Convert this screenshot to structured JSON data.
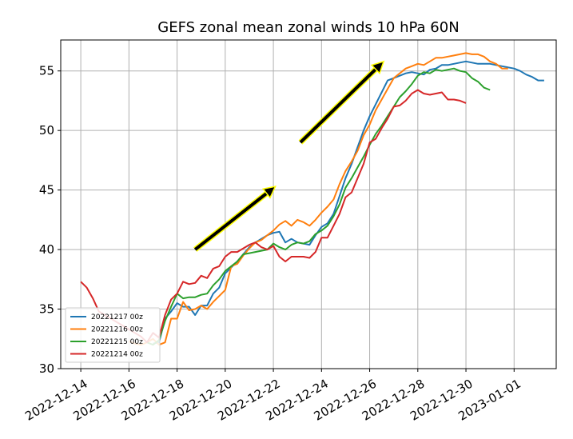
{
  "chart_data": {
    "type": "line",
    "title": "GEFS zonal mean zonal winds 10 hPa 60N",
    "xlabel": "",
    "ylabel": "",
    "xlim": [
      "2022-12-13T04:00",
      "2023-01-02T18:00"
    ],
    "ylim": [
      30,
      57.6
    ],
    "grid": true,
    "legend_position": "lower-left",
    "x_ticks": [
      "2022-12-14",
      "2022-12-16",
      "2022-12-18",
      "2022-12-20",
      "2022-12-22",
      "2022-12-24",
      "2022-12-26",
      "2022-12-28",
      "2022-12-30",
      "2023-01-01"
    ],
    "y_ticks": [
      30,
      35,
      40,
      45,
      50,
      55
    ],
    "series": [
      {
        "name": "20221217 00z",
        "color": "#1f77b4",
        "x": [
          "2022-12-17T00:00",
          "2022-12-17T06:00",
          "2022-12-17T12:00",
          "2022-12-17T18:00",
          "2022-12-18T00:00",
          "2022-12-18T06:00",
          "2022-12-18T12:00",
          "2022-12-18T18:00",
          "2022-12-19T00:00",
          "2022-12-19T06:00",
          "2022-12-19T12:00",
          "2022-12-19T18:00",
          "2022-12-20T00:00",
          "2022-12-20T06:00",
          "2022-12-20T12:00",
          "2022-12-20T18:00",
          "2022-12-21T00:00",
          "2022-12-21T06:00",
          "2022-12-21T12:00",
          "2022-12-21T18:00",
          "2022-12-22T00:00",
          "2022-12-22T06:00",
          "2022-12-22T12:00",
          "2022-12-22T18:00",
          "2022-12-23T00:00",
          "2022-12-23T06:00",
          "2022-12-23T12:00",
          "2022-12-23T18:00",
          "2022-12-24T00:00",
          "2022-12-24T06:00",
          "2022-12-24T12:00",
          "2022-12-24T18:00",
          "2022-12-25T00:00",
          "2022-12-25T06:00",
          "2022-12-25T12:00",
          "2022-12-25T18:00",
          "2022-12-26T00:00",
          "2022-12-26T06:00",
          "2022-12-26T12:00",
          "2022-12-26T18:00",
          "2022-12-27T00:00",
          "2022-12-27T06:00",
          "2022-12-27T12:00",
          "2022-12-27T18:00",
          "2022-12-28T00:00",
          "2022-12-28T06:00",
          "2022-12-28T12:00",
          "2022-12-28T18:00",
          "2022-12-29T00:00",
          "2022-12-29T06:00",
          "2022-12-29T12:00",
          "2022-12-29T18:00",
          "2022-12-30T00:00",
          "2022-12-30T12:00",
          "2022-12-31T00:00",
          "2022-12-31T12:00",
          "2023-01-01T00:00",
          "2023-01-01T06:00",
          "2023-01-01T12:00",
          "2023-01-01T18:00",
          "2023-01-02T00:00",
          "2023-01-02T06:00"
        ],
        "values": [
          32.1,
          32.2,
          34.2,
          34.8,
          35.5,
          35.2,
          35.2,
          34.5,
          35.3,
          35.3,
          36.3,
          36.8,
          38.0,
          38.5,
          39.0,
          39.6,
          40.2,
          40.6,
          40.9,
          41.2,
          41.4,
          41.5,
          40.6,
          40.9,
          40.6,
          40.5,
          40.4,
          41.2,
          41.9,
          42.2,
          43.0,
          44.5,
          46.0,
          47.2,
          48.6,
          50.0,
          51.2,
          52.2,
          53.2,
          54.2,
          54.4,
          54.6,
          54.8,
          54.9,
          54.8,
          54.7,
          55.1,
          55.2,
          55.5,
          55.5,
          55.6,
          55.7,
          55.8,
          55.6,
          55.6,
          55.4,
          55.2,
          55.0,
          54.7,
          54.5,
          54.2,
          54.2
        ]
      },
      {
        "name": "20221216 00z",
        "color": "#ff7f0e",
        "x": [
          "2022-12-16T00:00",
          "2022-12-16T06:00",
          "2022-12-16T12:00",
          "2022-12-16T18:00",
          "2022-12-17T00:00",
          "2022-12-17T06:00",
          "2022-12-17T12:00",
          "2022-12-17T18:00",
          "2022-12-18T00:00",
          "2022-12-18T06:00",
          "2022-12-18T12:00",
          "2022-12-18T18:00",
          "2022-12-19T00:00",
          "2022-12-19T06:00",
          "2022-12-19T12:00",
          "2022-12-19T18:00",
          "2022-12-20T00:00",
          "2022-12-20T06:00",
          "2022-12-20T12:00",
          "2022-12-20T18:00",
          "2022-12-21T00:00",
          "2022-12-21T06:00",
          "2022-12-21T12:00",
          "2022-12-21T18:00",
          "2022-12-22T00:00",
          "2022-12-22T06:00",
          "2022-12-22T12:00",
          "2022-12-22T18:00",
          "2022-12-23T00:00",
          "2022-12-23T06:00",
          "2022-12-23T12:00",
          "2022-12-23T18:00",
          "2022-12-24T00:00",
          "2022-12-24T06:00",
          "2022-12-24T12:00",
          "2022-12-24T18:00",
          "2022-12-25T00:00",
          "2022-12-25T06:00",
          "2022-12-25T12:00",
          "2022-12-25T18:00",
          "2022-12-26T00:00",
          "2022-12-26T06:00",
          "2022-12-26T12:00",
          "2022-12-26T18:00",
          "2022-12-27T00:00",
          "2022-12-27T06:00",
          "2022-12-27T12:00",
          "2022-12-27T18:00",
          "2022-12-28T00:00",
          "2022-12-28T06:00",
          "2022-12-28T12:00",
          "2022-12-28T18:00",
          "2022-12-29T00:00",
          "2022-12-29T06:00",
          "2022-12-29T12:00",
          "2022-12-29T18:00",
          "2022-12-30T00:00",
          "2022-12-30T06:00",
          "2022-12-30T12:00",
          "2022-12-30T18:00",
          "2022-12-31T00:00",
          "2022-12-31T06:00",
          "2022-12-31T12:00",
          "2022-12-31T18:00"
        ],
        "values": [
          32.3,
          32.1,
          32.0,
          32.2,
          32.5,
          32.0,
          32.2,
          34.2,
          34.2,
          35.6,
          34.9,
          35.0,
          35.3,
          35.0,
          35.6,
          36.1,
          36.6,
          38.6,
          38.8,
          39.5,
          40.1,
          40.6,
          40.8,
          41.2,
          41.6,
          42.1,
          42.4,
          42.0,
          42.5,
          42.3,
          42.0,
          42.5,
          43.1,
          43.6,
          44.2,
          45.5,
          46.6,
          47.4,
          48.3,
          49.6,
          50.5,
          51.7,
          52.6,
          53.5,
          54.4,
          54.8,
          55.2,
          55.4,
          55.6,
          55.5,
          55.8,
          56.1,
          56.1,
          56.2,
          56.3,
          56.4,
          56.5,
          56.4,
          56.4,
          56.2,
          55.8,
          55.6,
          55.2,
          55.2
        ]
      },
      {
        "name": "20221215 00z",
        "color": "#2ca02c",
        "x": [
          "2022-12-16T18:00",
          "2022-12-17T00:00",
          "2022-12-17T06:00",
          "2022-12-17T12:00",
          "2022-12-17T18:00",
          "2022-12-18T00:00",
          "2022-12-18T06:00",
          "2022-12-18T12:00",
          "2022-12-18T18:00",
          "2022-12-19T00:00",
          "2022-12-19T06:00",
          "2022-12-19T12:00",
          "2022-12-19T18:00",
          "2022-12-20T00:00",
          "2022-12-20T06:00",
          "2022-12-20T12:00",
          "2022-12-20T18:00",
          "2022-12-21T00:00",
          "2022-12-21T06:00",
          "2022-12-21T12:00",
          "2022-12-21T18:00",
          "2022-12-22T00:00",
          "2022-12-22T06:00",
          "2022-12-22T12:00",
          "2022-12-22T18:00",
          "2022-12-23T00:00",
          "2022-12-23T06:00",
          "2022-12-23T12:00",
          "2022-12-23T18:00",
          "2022-12-24T00:00",
          "2022-12-24T06:00",
          "2022-12-24T12:00",
          "2022-12-24T18:00",
          "2022-12-25T00:00",
          "2022-12-25T06:00",
          "2022-12-25T12:00",
          "2022-12-25T18:00",
          "2022-12-26T00:00",
          "2022-12-26T06:00",
          "2022-12-26T12:00",
          "2022-12-26T18:00",
          "2022-12-27T00:00",
          "2022-12-27T06:00",
          "2022-12-27T12:00",
          "2022-12-27T18:00",
          "2022-12-28T00:00",
          "2022-12-28T06:00",
          "2022-12-28T12:00",
          "2022-12-28T18:00",
          "2022-12-29T00:00",
          "2022-12-29T06:00",
          "2022-12-29T12:00",
          "2022-12-29T18:00",
          "2022-12-30T00:00",
          "2022-12-30T06:00",
          "2022-12-30T12:00",
          "2022-12-30T18:00",
          "2022-12-31T00:00"
        ],
        "values": [
          32.2,
          32.0,
          32.4,
          34.0,
          35.2,
          36.3,
          35.9,
          36.0,
          36.0,
          36.2,
          36.3,
          37.0,
          37.5,
          38.2,
          38.6,
          39.0,
          39.6,
          39.7,
          39.8,
          39.9,
          40.0,
          40.5,
          40.2,
          40.0,
          40.4,
          40.6,
          40.5,
          40.7,
          41.3,
          41.6,
          42.0,
          42.8,
          43.8,
          45.2,
          46.0,
          46.9,
          47.8,
          48.8,
          49.7,
          50.4,
          51.2,
          52.0,
          52.8,
          53.3,
          53.9,
          54.6,
          54.9,
          54.8,
          55.1,
          55.0,
          55.1,
          55.2,
          55.0,
          54.9,
          54.4,
          54.1,
          53.6,
          53.4
        ]
      },
      {
        "name": "20221214 00z",
        "color": "#d62728",
        "x": [
          "2022-12-14T00:00",
          "2022-12-14T06:00",
          "2022-12-14T12:00",
          "2022-12-14T18:00",
          "2022-12-16T12:00",
          "2022-12-16T18:00",
          "2022-12-17T00:00",
          "2022-12-17T06:00",
          "2022-12-17T12:00",
          "2022-12-17T18:00",
          "2022-12-18T00:00",
          "2022-12-18T06:00",
          "2022-12-18T12:00",
          "2022-12-18T18:00",
          "2022-12-19T00:00",
          "2022-12-19T06:00",
          "2022-12-19T12:00",
          "2022-12-19T18:00",
          "2022-12-20T00:00",
          "2022-12-20T06:00",
          "2022-12-20T12:00",
          "2022-12-20T18:00",
          "2022-12-21T00:00",
          "2022-12-21T06:00",
          "2022-12-21T12:00",
          "2022-12-21T18:00",
          "2022-12-22T00:00",
          "2022-12-22T06:00",
          "2022-12-22T12:00",
          "2022-12-22T18:00",
          "2022-12-23T00:00",
          "2022-12-23T06:00",
          "2022-12-23T12:00",
          "2022-12-23T18:00",
          "2022-12-24T00:00",
          "2022-12-24T06:00",
          "2022-12-24T12:00",
          "2022-12-24T18:00",
          "2022-12-25T00:00",
          "2022-12-25T06:00",
          "2022-12-25T12:00",
          "2022-12-25T18:00",
          "2022-12-26T00:00",
          "2022-12-26T06:00",
          "2022-12-26T12:00",
          "2022-12-26T18:00",
          "2022-12-27T00:00",
          "2022-12-27T06:00",
          "2022-12-27T12:00",
          "2022-12-27T18:00",
          "2022-12-28T00:00",
          "2022-12-28T06:00",
          "2022-12-28T12:00",
          "2022-12-28T18:00",
          "2022-12-29T00:00",
          "2022-12-29T06:00",
          "2022-12-29T12:00",
          "2022-12-29T18:00",
          "2022-12-30T00:00"
        ],
        "values": [
          37.3,
          36.8,
          35.9,
          34.8,
          32.7,
          32.2,
          33.0,
          32.6,
          34.5,
          35.8,
          36.3,
          37.3,
          37.1,
          37.2,
          37.8,
          37.6,
          38.4,
          38.6,
          39.4,
          39.8,
          39.8,
          40.1,
          40.4,
          40.6,
          40.2,
          40.0,
          40.3,
          39.4,
          39.0,
          39.4,
          39.4,
          39.4,
          39.3,
          39.8,
          41.0,
          41.0,
          42.0,
          43.0,
          44.4,
          44.8,
          46.0,
          47.2,
          49.0,
          49.3,
          50.2,
          51.0,
          52.0,
          52.1,
          52.5,
          53.1,
          53.4,
          53.1,
          53.0,
          53.1,
          53.2,
          52.6,
          52.6,
          52.5,
          52.3
        ]
      }
    ],
    "annotations": [
      {
        "type": "arrow",
        "color": "#000000",
        "edge_color": "#ffff00",
        "from": {
          "x": "2022-12-18T18:00",
          "y": 40.0
        },
        "to": {
          "x": "2022-12-22T02:00",
          "y": 45.3
        }
      },
      {
        "type": "arrow",
        "color": "#000000",
        "edge_color": "#ffff00",
        "from": {
          "x": "2022-12-23T03:00",
          "y": 49.0
        },
        "to": {
          "x": "2022-12-26T14:00",
          "y": 55.8
        }
      }
    ]
  }
}
